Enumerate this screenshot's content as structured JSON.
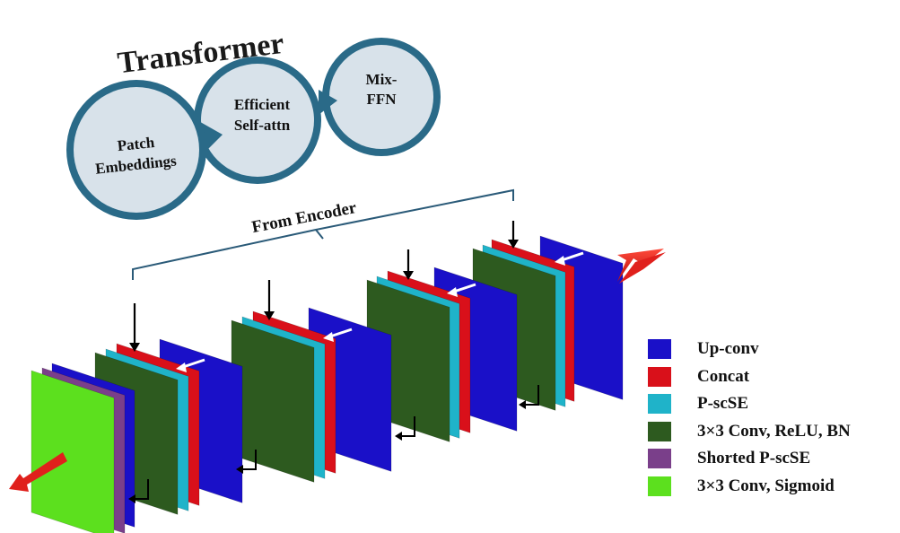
{
  "transformer": {
    "title": "Transformer",
    "stages": [
      {
        "line1": "Patch",
        "line2": "Embeddings"
      },
      {
        "line1": "Efficient",
        "line2": "Self-attn"
      },
      {
        "line1": "Mix-",
        "line2": "FFN"
      }
    ]
  },
  "encoder_label": "From Encoder",
  "colors": {
    "upconv": "#1a10c8",
    "concat": "#d9101a",
    "pscse": "#1fb3c9",
    "conv": "#2d5a1f",
    "shorted": "#7a3f8a",
    "sigmoid": "#5ce01e",
    "ring": "#2a6a88",
    "bubble": "#d8e2ea"
  },
  "legend": [
    {
      "key": "upconv",
      "label": "Up-conv",
      "color": "#1a10c8"
    },
    {
      "key": "concat",
      "label": "Concat",
      "color": "#d9101a"
    },
    {
      "key": "pscse",
      "label": "P-scSE",
      "color": "#1fb3c9"
    },
    {
      "key": "conv",
      "label": "3×3 Conv, ReLU, BN",
      "color": "#2d5a1f"
    },
    {
      "key": "shorted",
      "label": "Shorted P-scSE",
      "color": "#7a3f8a"
    },
    {
      "key": "sigmoid",
      "label": "3×3 Conv, Sigmoid",
      "color": "#5ce01e"
    }
  ]
}
